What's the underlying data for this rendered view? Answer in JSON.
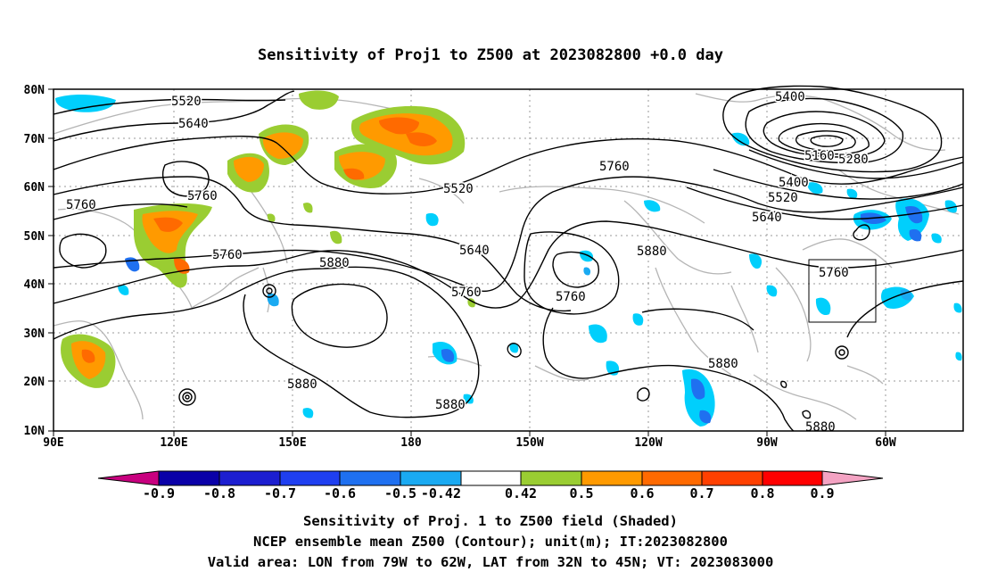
{
  "title": "Sensitivity of Proj1 to Z500 at 2023082800 +0.0 day",
  "axes": {
    "y_ticks": [
      "80N",
      "70N",
      "60N",
      "50N",
      "40N",
      "30N",
      "20N",
      "10N"
    ],
    "x_ticks": [
      "90E",
      "120E",
      "150E",
      "180",
      "150W",
      "120W",
      "90W",
      "60W"
    ]
  },
  "contour_labels": [
    "5520",
    "5640",
    "5760",
    "5760",
    "5760",
    "5880",
    "5640",
    "5760",
    "5520",
    "5760",
    "5880",
    "5760",
    "5400",
    "5160",
    "5280",
    "5400",
    "5520",
    "5640",
    "5760",
    "5880",
    "5880",
    "5880",
    "5880",
    "5880"
  ],
  "colorbar": {
    "labels": [
      "-0.9",
      "-0.8",
      "-0.7",
      "-0.6",
      "-0.5",
      "-0.42",
      "0.42",
      "0.5",
      "0.6",
      "0.7",
      "0.8",
      "0.9"
    ],
    "colors": [
      "#c8007f",
      "#0a00a8",
      "#1c1ed0",
      "#1f3ff0",
      "#1f70f0",
      "#1aaaf2",
      "#00cffc",
      "#ffffff",
      "#9acd32",
      "#ff9a00",
      "#ff6a00",
      "#ff4000",
      "#ff0000",
      "#f4a3c3"
    ]
  },
  "caption": {
    "line1": "Sensitivity of Proj. 1 to Z500 field (Shaded)",
    "line2": "NCEP ensemble mean Z500 (Contour); unit(m); IT:2023082800",
    "line3": "Valid area: LON from 79W to 62W, LAT from 32N to 45N; VT: 2023083000"
  }
}
